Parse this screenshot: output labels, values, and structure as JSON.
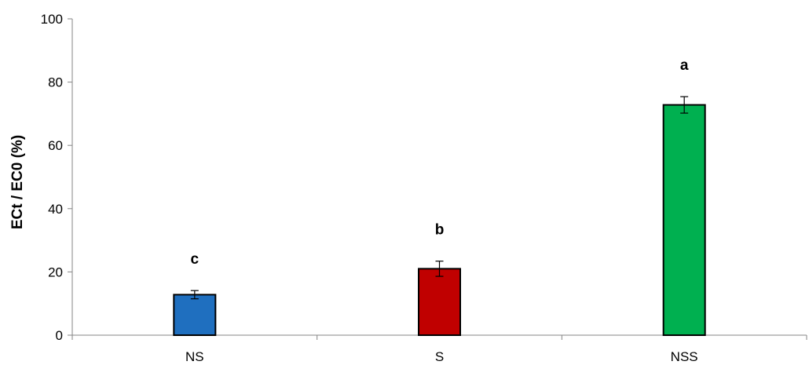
{
  "chart_data": {
    "type": "bar",
    "title": "",
    "xlabel": "",
    "ylabel": "ECt / EC0 (%)",
    "ylim": [
      0,
      100
    ],
    "yticks": [
      0,
      20,
      40,
      60,
      80,
      100
    ],
    "grid": false,
    "legend": "none",
    "categories": [
      "NS",
      "S",
      "NSS"
    ],
    "values": [
      12.8,
      21.0,
      72.8
    ],
    "errors": [
      1.3,
      2.4,
      2.6
    ],
    "significance_labels": [
      "c",
      "b",
      "a"
    ],
    "colors": [
      "#1f6fbf",
      "#c00000",
      "#00b050"
    ]
  }
}
